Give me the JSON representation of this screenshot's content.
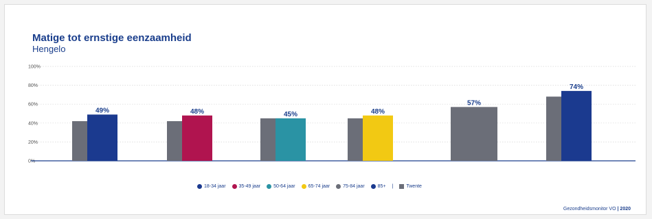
{
  "colors": {
    "title": "#1a3e8c",
    "twente": "#6b6e78",
    "axis": "#1a3e8c",
    "grid": "#d6d6d6"
  },
  "chart_data": {
    "type": "bar",
    "title": "Matige tot ernstige eenzaamheid",
    "subtitle": "Hengelo",
    "xlabel": "",
    "ylabel": "",
    "ylim": [
      0,
      100
    ],
    "y_ticks": [
      "100%",
      "80%",
      "60%",
      "40%",
      "20%",
      "0%"
    ],
    "grid": true,
    "categories": [
      "18-34 jaar",
      "35-49 jaar",
      "50-64 jaar",
      "65-74 jaar",
      "75-84 jaar",
      "85+"
    ],
    "series": [
      {
        "name": "Twente",
        "color": "#6b6e78",
        "values": [
          42,
          42,
          45,
          45,
          null,
          68
        ]
      },
      {
        "name": "Hengelo",
        "colors": [
          "#1b3a8f",
          "#b0144f",
          "#2a93a4",
          "#f2c913",
          "#6b6e78",
          "#1b3a8f"
        ],
        "values": [
          49,
          48,
          45,
          48,
          57,
          74
        ],
        "labels": [
          "49%",
          "48%",
          "45%",
          "48%",
          "57%",
          "74%"
        ]
      }
    ]
  },
  "legend": {
    "items": [
      {
        "label": "18-34 jaar",
        "color": "#1b3a8f",
        "icon": "circle-icon"
      },
      {
        "label": "35-49 jaar",
        "color": "#b0144f",
        "icon": "circle-icon"
      },
      {
        "label": "50-64 jaar",
        "color": "#2a93a4",
        "icon": "circle-icon"
      },
      {
        "label": "65-74 jaar",
        "color": "#f2c913",
        "icon": "circle-icon"
      },
      {
        "label": "75-84 jaar",
        "color": "#6b6e78",
        "icon": "circle-icon"
      },
      {
        "label": "85+",
        "color": "#1b3a8f",
        "icon": "circle-icon"
      }
    ],
    "separator": "|",
    "twente_label": "Twente",
    "twente_color": "#6b6e78",
    "twente_icon": "square-icon"
  },
  "footer": {
    "source": "Gezondheidsmonitor VO",
    "separator": "|",
    "year": "2020"
  }
}
